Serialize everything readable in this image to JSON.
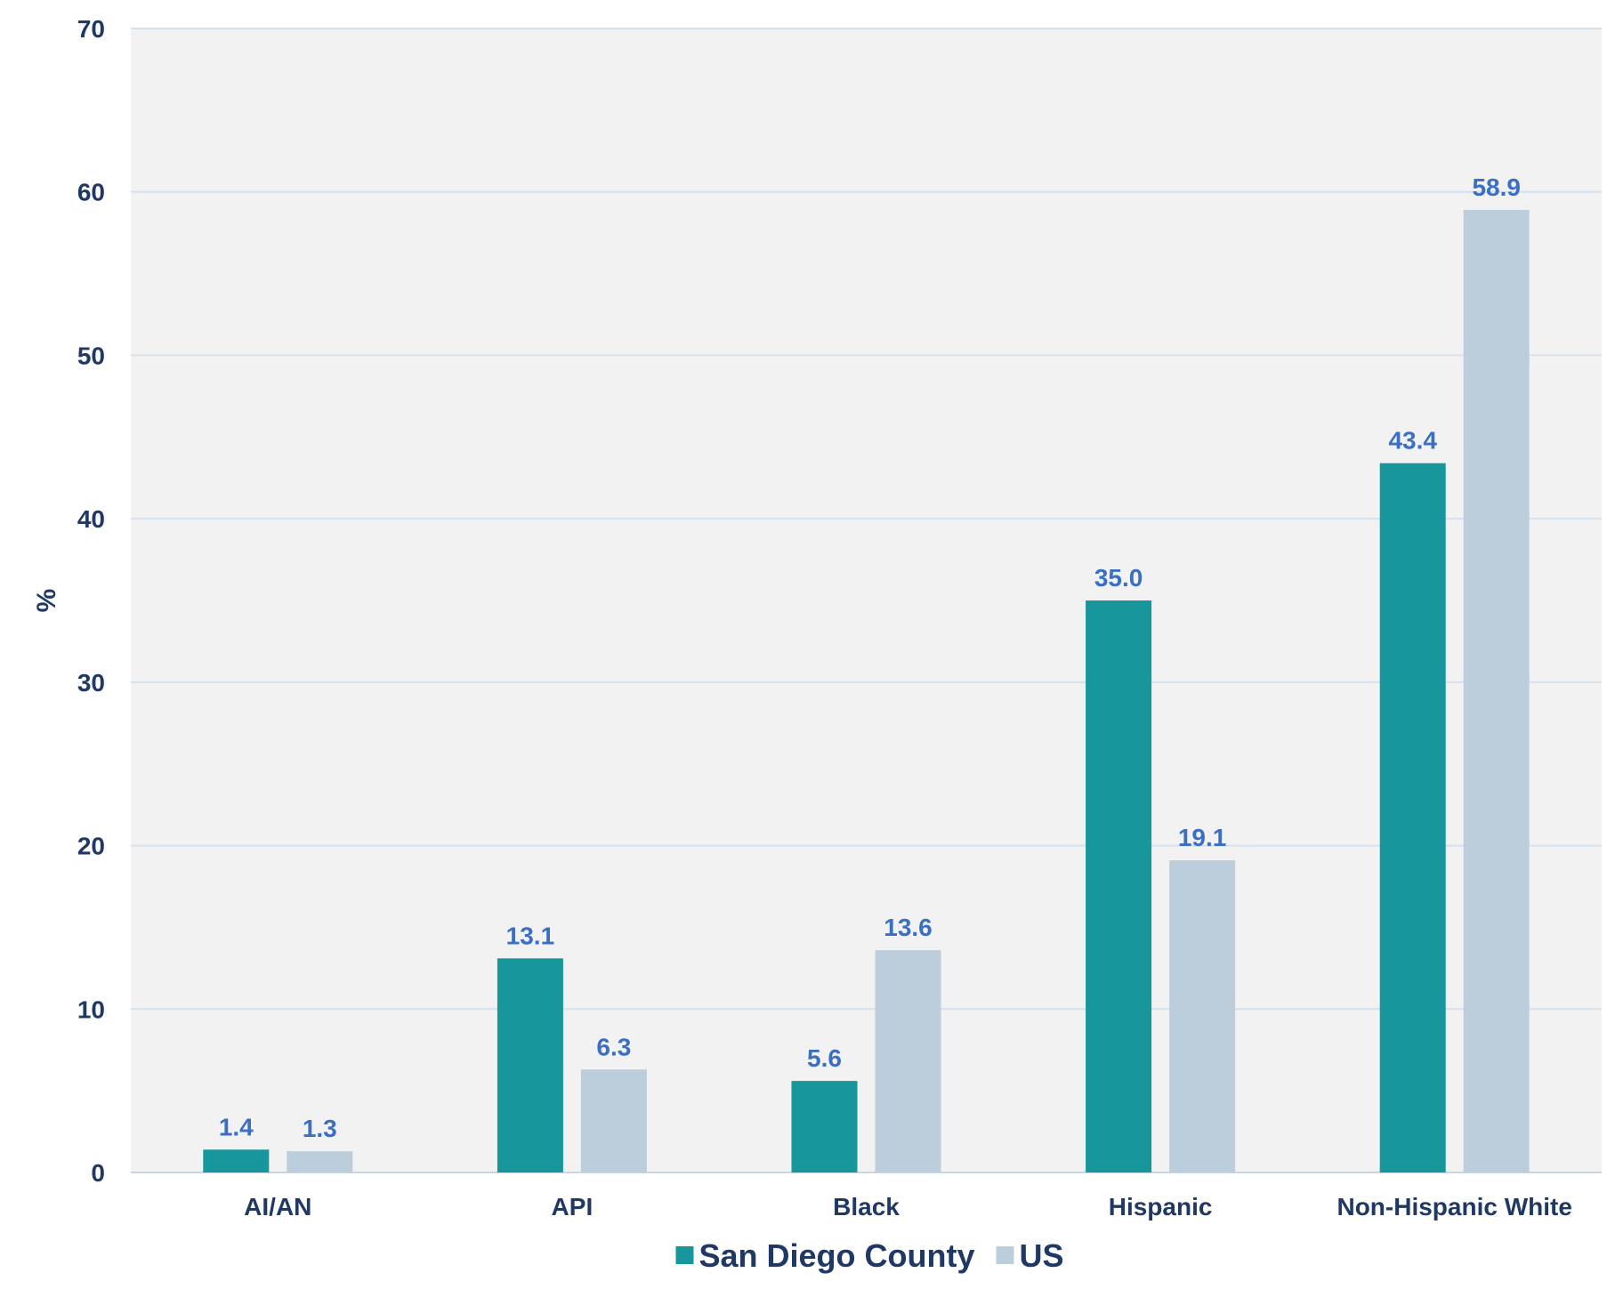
{
  "chart_data": {
    "type": "bar",
    "title": "",
    "xlabel": "",
    "ylabel": "%",
    "ylim": [
      0,
      70
    ],
    "yticks": [
      0,
      10,
      20,
      30,
      40,
      50,
      60,
      70
    ],
    "grid": true,
    "legend_position": "bottom",
    "categories": [
      "AI/AN",
      "API",
      "Black",
      "Hispanic",
      "Non-Hispanic White"
    ],
    "series": [
      {
        "name": "San Diego County",
        "color": "#17979B",
        "values": [
          1.4,
          13.1,
          5.6,
          35.0,
          43.4
        ],
        "labels": [
          "1.4",
          "13.1",
          "5.6",
          "35.0",
          "43.4"
        ]
      },
      {
        "name": "US",
        "color": "#BCCEDC",
        "values": [
          1.3,
          6.3,
          13.6,
          19.1,
          58.9
        ],
        "labels": [
          "1.3",
          "6.3",
          "13.6",
          "19.1",
          "58.9"
        ]
      }
    ],
    "colors": {
      "plot_background": "#F2F2F2",
      "gridline": "#D6E1EC",
      "axis_text": "#1F3864",
      "data_label": "#3A6FC4"
    }
  }
}
